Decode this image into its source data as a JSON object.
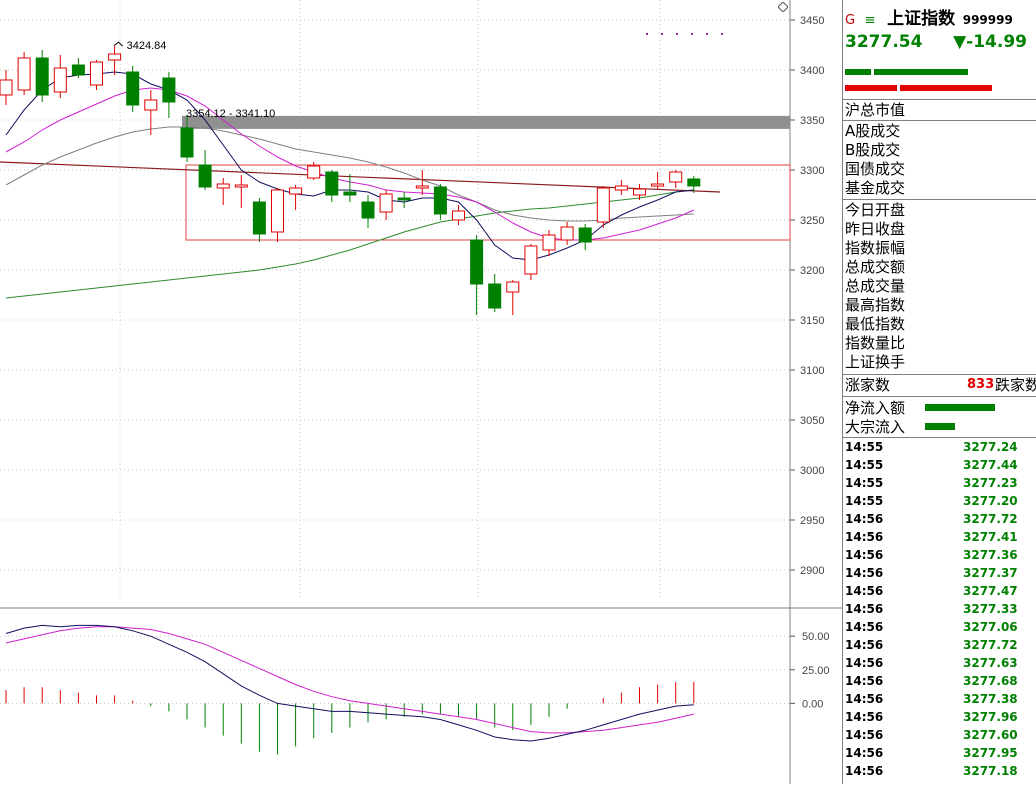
{
  "header": {
    "g_mark": "G",
    "index_name": "上证指数",
    "index_code": "999999",
    "price": "3277.54",
    "change": "▼-14.99"
  },
  "y_axis": {
    "labels": [
      "3450",
      "3400",
      "3350",
      "3300",
      "3250",
      "3200",
      "3150",
      "3100",
      "3050",
      "3000",
      "2950",
      "2900"
    ]
  },
  "indicator_axis": {
    "labels": [
      "50.00",
      "25.00",
      "0.00"
    ]
  },
  "annotations": {
    "high": "3424.84",
    "range": "3354.12 - 3341.10"
  },
  "stats": {
    "labels_top": [
      "沪总市值"
    ],
    "labels_group1": [
      "A股成交",
      "B股成交",
      "国债成交",
      "基金成交"
    ],
    "labels_group2": [
      "今日开盘",
      "昨日收盘",
      "指数振幅",
      "总成交额",
      "总成交量",
      "最高指数",
      "最低指数",
      "指数量比",
      "上证换手"
    ],
    "up_label": "涨家数",
    "up_count": "833",
    "down_label": "跌家数",
    "flow_labels": [
      "净流入额",
      "大宗流入"
    ]
  },
  "ticks": [
    {
      "time": "14:55",
      "price": "3277.24"
    },
    {
      "time": "14:55",
      "price": "3277.44"
    },
    {
      "time": "14:55",
      "price": "3277.23"
    },
    {
      "time": "14:55",
      "price": "3277.20"
    },
    {
      "time": "14:56",
      "price": "3277.72"
    },
    {
      "time": "14:56",
      "price": "3277.41"
    },
    {
      "time": "14:56",
      "price": "3277.36"
    },
    {
      "time": "14:56",
      "price": "3277.37"
    },
    {
      "time": "14:56",
      "price": "3277.47"
    },
    {
      "time": "14:56",
      "price": "3277.33"
    },
    {
      "time": "14:56",
      "price": "3277.06"
    },
    {
      "time": "14:56",
      "price": "3277.72"
    },
    {
      "time": "14:56",
      "price": "3277.63"
    },
    {
      "time": "14:56",
      "price": "3277.68"
    },
    {
      "time": "14:56",
      "price": "3277.38"
    },
    {
      "time": "14:56",
      "price": "3277.96"
    },
    {
      "time": "14:56",
      "price": "3277.60"
    },
    {
      "time": "14:56",
      "price": "3277.95"
    },
    {
      "time": "14:56",
      "price": "3277.18"
    }
  ],
  "colors": {
    "up": "#e00000",
    "down": "#008000",
    "grid": "#c0c0c0"
  },
  "chart_data": {
    "type": "candlestick",
    "title": "上证指数",
    "ylim": [
      2870,
      3470
    ],
    "candles": [
      {
        "open": 3375,
        "close": 3390,
        "high": 3400,
        "low": 3365
      },
      {
        "open": 3380,
        "close": 3412,
        "high": 3418,
        "low": 3375
      },
      {
        "open": 3412,
        "close": 3375,
        "high": 3420,
        "low": 3368
      },
      {
        "open": 3378,
        "close": 3402,
        "high": 3415,
        "low": 3372
      },
      {
        "open": 3405,
        "close": 3395,
        "high": 3412,
        "low": 3392
      },
      {
        "open": 3385,
        "close": 3408,
        "high": 3410,
        "low": 3380
      },
      {
        "open": 3410,
        "close": 3416,
        "high": 3424.84,
        "low": 3395
      },
      {
        "open": 3398,
        "close": 3365,
        "high": 3404,
        "low": 3358
      },
      {
        "open": 3360,
        "close": 3370,
        "high": 3380,
        "low": 3335
      },
      {
        "open": 3392,
        "close": 3368,
        "high": 3398,
        "low": 3352
      },
      {
        "open": 3342,
        "close": 3313,
        "high": 3354.12,
        "low": 3308
      },
      {
        "open": 3305,
        "close": 3283,
        "high": 3320,
        "low": 3280
      },
      {
        "open": 3282,
        "close": 3286,
        "high": 3292,
        "low": 3265
      },
      {
        "open": 3283,
        "close": 3285,
        "high": 3295,
        "low": 3262
      },
      {
        "open": 3268,
        "close": 3236,
        "high": 3272,
        "low": 3228
      },
      {
        "open": 3238,
        "close": 3280,
        "high": 3282,
        "low": 3228
      },
      {
        "open": 3276,
        "close": 3282,
        "high": 3285,
        "low": 3260
      },
      {
        "open": 3292,
        "close": 3304,
        "high": 3308,
        "low": 3290
      },
      {
        "open": 3298,
        "close": 3275,
        "high": 3300,
        "low": 3268
      },
      {
        "open": 3278,
        "close": 3275,
        "high": 3296,
        "low": 3268
      },
      {
        "open": 3268,
        "close": 3252,
        "high": 3275,
        "low": 3242
      },
      {
        "open": 3258,
        "close": 3276,
        "high": 3280,
        "low": 3250
      },
      {
        "open": 3272,
        "close": 3270,
        "high": 3278,
        "low": 3262
      },
      {
        "open": 3282,
        "close": 3284,
        "high": 3300,
        "low": 3275
      },
      {
        "open": 3283,
        "close": 3256,
        "high": 3286,
        "low": 3250
      },
      {
        "open": 3250,
        "close": 3259,
        "high": 3265,
        "low": 3245
      },
      {
        "open": 3230,
        "close": 3186,
        "high": 3235,
        "low": 3155
      },
      {
        "open": 3186,
        "close": 3162,
        "high": 3196,
        "low": 3158
      },
      {
        "open": 3178,
        "close": 3188,
        "high": 3190,
        "low": 3155
      },
      {
        "open": 3196,
        "close": 3224,
        "high": 3226,
        "low": 3190
      },
      {
        "open": 3220,
        "close": 3235,
        "high": 3240,
        "low": 3214
      },
      {
        "open": 3230,
        "close": 3243,
        "high": 3248,
        "low": 3225
      },
      {
        "open": 3242,
        "close": 3228,
        "high": 3246,
        "low": 3220
      },
      {
        "open": 3248,
        "close": 3282,
        "high": 3284,
        "low": 3242
      },
      {
        "open": 3280,
        "close": 3284,
        "high": 3290,
        "low": 3275
      },
      {
        "open": 3275,
        "close": 3281,
        "high": 3286,
        "low": 3270
      },
      {
        "open": 3284,
        "close": 3286,
        "high": 3298,
        "low": 3280
      },
      {
        "open": 3288,
        "close": 3298,
        "high": 3300,
        "low": 3282
      },
      {
        "open": 3291,
        "close": 3284,
        "high": 3294,
        "low": 3277
      }
    ],
    "ma_fast": [
      3335,
      3360,
      3380,
      3392,
      3395,
      3396,
      3398,
      3396,
      3386,
      3380,
      3370,
      3350,
      3325,
      3300,
      3288,
      3281,
      3276,
      3274,
      3280,
      3280,
      3278,
      3270,
      3268,
      3272,
      3272,
      3268,
      3250,
      3225,
      3212,
      3210,
      3215,
      3222,
      3230,
      3245,
      3255,
      3263,
      3270,
      3278,
      3280
    ],
    "ma_mid": [
      3318,
      3328,
      3340,
      3350,
      3358,
      3366,
      3374,
      3380,
      3382,
      3380,
      3374,
      3364,
      3350,
      3336,
      3324,
      3313,
      3304,
      3298,
      3292,
      3288,
      3285,
      3280,
      3278,
      3277,
      3276,
      3273,
      3268,
      3258,
      3247,
      3238,
      3232,
      3230,
      3230,
      3232,
      3236,
      3240,
      3246,
      3252,
      3260
    ],
    "ma_slow": [
      3285,
      3295,
      3305,
      3313,
      3320,
      3327,
      3333,
      3338,
      3341,
      3343,
      3343,
      3342,
      3339,
      3335,
      3331,
      3326,
      3321,
      3318,
      3315,
      3312,
      3308,
      3303,
      3297,
      3290,
      3284,
      3275,
      3268,
      3260,
      3255,
      3252,
      3250,
      3249,
      3249,
      3250,
      3252,
      3253,
      3254,
      3255,
      3256
    ],
    "ma_long": [
      3172,
      3174,
      3176,
      3178,
      3180,
      3182,
      3184,
      3186,
      3188,
      3190,
      3192,
      3194,
      3196,
      3198,
      3200,
      3203,
      3206,
      3210,
      3215,
      3220,
      3226,
      3232,
      3238,
      3243,
      3248,
      3251,
      3254,
      3257,
      3259,
      3261,
      3262,
      3264,
      3266,
      3268,
      3270,
      3272,
      3275,
      3278,
      3280
    ],
    "trend_line": [
      3308,
      3278
    ],
    "macd_dif": [
      52,
      56,
      58,
      57,
      58,
      58,
      57,
      54,
      50,
      44,
      38,
      31,
      22,
      13,
      6,
      0,
      -2,
      -4,
      -6,
      -6,
      -7,
      -8,
      -9,
      -10,
      -12,
      -16,
      -20,
      -25,
      -27,
      -28,
      -26,
      -23,
      -20,
      -16,
      -12,
      -8,
      -5,
      -2,
      -1
    ],
    "macd_dea": [
      45,
      48,
      51,
      54,
      56,
      57,
      57,
      56,
      55,
      52,
      48,
      44,
      38,
      32,
      26,
      20,
      14,
      9,
      5,
      2,
      0,
      -2,
      -4,
      -6,
      -8,
      -10,
      -12,
      -15,
      -18,
      -21,
      -22,
      -22,
      -21,
      -20,
      -18,
      -16,
      -14,
      -11,
      -8
    ],
    "macd_hist": [
      10,
      12,
      12,
      10,
      8,
      6,
      6,
      2,
      -2,
      -6,
      -12,
      -18,
      -24,
      -30,
      -36,
      -38,
      -32,
      -26,
      -22,
      -18,
      -14,
      -12,
      -10,
      -8,
      -8,
      -10,
      -12,
      -18,
      -20,
      -16,
      -10,
      -4,
      0,
      4,
      8,
      12,
      14,
      16,
      16
    ]
  }
}
